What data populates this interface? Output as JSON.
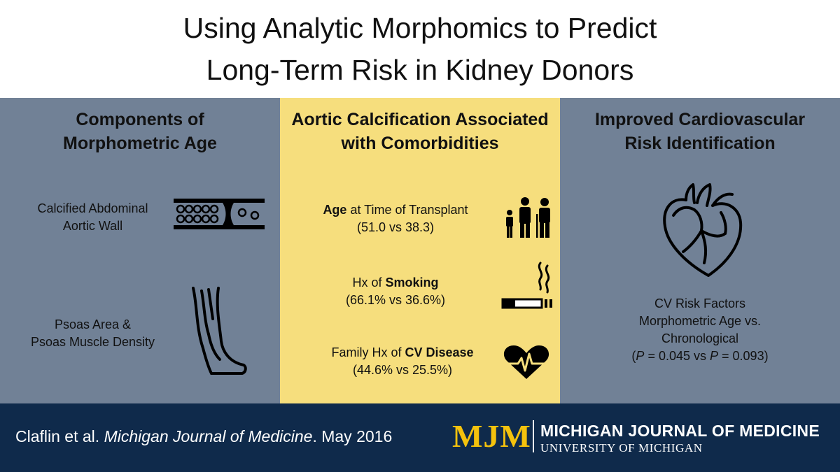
{
  "title": {
    "line1": "Using Analytic Morphomics to Predict",
    "line2": "Long-Term Risk in Kidney Donors"
  },
  "left": {
    "heading_line1": "Components of",
    "heading_line2": "Morphometric  Age",
    "item1_line1": "Calcified Abdominal",
    "item1_line2": "Aortic Wall",
    "item2_line1": "Psoas Area &",
    "item2_line2": "Psoas Muscle Density"
  },
  "middle": {
    "heading_line1": "Aortic Calcification Associated",
    "heading_line2": "with Comorbidities",
    "items": [
      {
        "bold": "Age",
        "pre": "",
        "post": " at Time of Transplant",
        "values": "(51.0 vs 38.3)",
        "icon": "family-icon"
      },
      {
        "pre": "Hx of ",
        "bold": "Smoking",
        "post": "",
        "values": "(66.1% vs 36.6%)",
        "icon": "cigarette-icon"
      },
      {
        "pre": "Family Hx of ",
        "bold": "CV Disease",
        "post": "",
        "values": "(44.6% vs 25.5%)",
        "icon": "heartbeat-icon"
      }
    ]
  },
  "right": {
    "heading_line1": "Improved Cardiovascular",
    "heading_line2": "Risk Identification",
    "line1": "CV Risk Factors",
    "line2": "Morphometric Age vs.",
    "line3": "Chronological",
    "p1": "P",
    "eq1": " = 0.045 vs ",
    "p2": "P",
    "eq2": " = 0.093)",
    "open_paren": "("
  },
  "footer": {
    "authors": "Claflin et al. ",
    "journal_italic": "Michigan Journal of Medicine",
    "date": ". May 2016",
    "logo": "MJM",
    "journal_name": "MICHIGAN JOURNAL OF MEDICINE",
    "university": "UNIVERSITY OF MICHIGAN"
  },
  "colors": {
    "panel_gray": "#718196",
    "panel_yellow": "#f6de7d",
    "footer_navy": "#0f2a4b",
    "logo_gold": "#f4c20d"
  }
}
